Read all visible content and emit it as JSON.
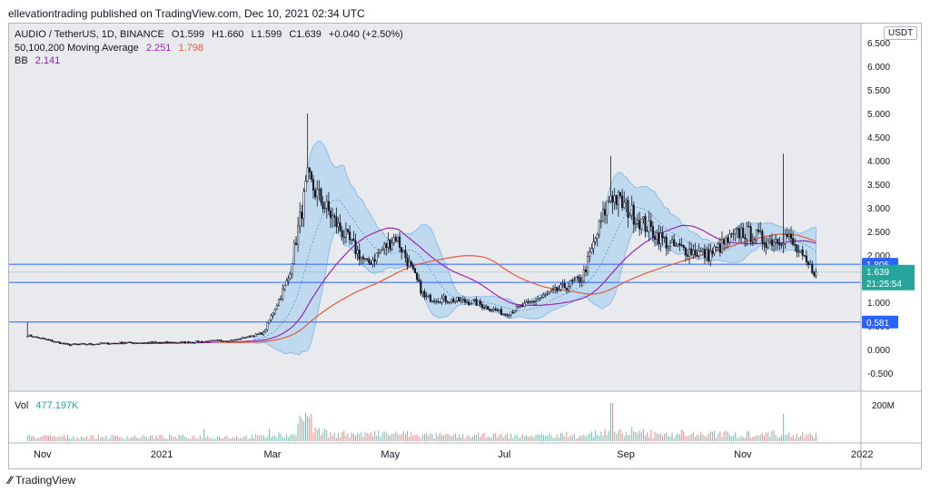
{
  "publisher": "ellevationtrading published on TradingView.com, Dec 10, 2021 02:34 UTC",
  "legend": {
    "symbol": "AUDIO / TetherUS, 1D, BINANCE",
    "open": "O1.599",
    "high": "H1.660",
    "low": "L1.599",
    "close": "C1.639",
    "change": "+0.040 (+2.50%)",
    "ma_label": "50,100,200 Moving Average",
    "ma_val1": "2.251",
    "ma_val2": "1.798",
    "bb_label": "BB",
    "bb_val": "2.141",
    "vol_label": "Vol",
    "vol_val": "477.197K"
  },
  "unit": "USDT",
  "footer": "TradingView",
  "colors": {
    "up": "#26a69a",
    "down": "#ef5350",
    "candle": "#131722",
    "ma50": "#9c27b0",
    "ma100": "#e05d3a",
    "bb_fill": "#9ccbf0",
    "hline": "#2962ff",
    "price_badge": "#26a69a"
  },
  "chart_data": {
    "type": "candlestick",
    "x_ticks": [
      "Nov",
      "2021",
      "Mar",
      "May",
      "Jul",
      "Sep",
      "Nov",
      "2022"
    ],
    "y_ticks": [
      "-0.500",
      "0.000",
      "0.500",
      "1.000",
      "1.500",
      "2.000",
      "2.500",
      "3.000",
      "3.500",
      "4.000",
      "4.500",
      "5.000",
      "5.500",
      "6.000",
      "6.500"
    ],
    "ylim": [
      -0.5,
      6.6
    ],
    "horizontal_levels": [
      {
        "label": "1.805",
        "value": 1.805
      },
      {
        "label": "1.420",
        "value": 1.42
      },
      {
        "label": "0.581",
        "value": 0.581
      }
    ],
    "last_price": {
      "label": "1.639",
      "value": 1.639,
      "countdown": "21:25:54"
    },
    "volume_axis_label": "200M",
    "close_series_approx": [
      {
        "date": "2020-10-25",
        "close": 0.3
      },
      {
        "date": "2020-11-15",
        "close": 0.1
      },
      {
        "date": "2020-12-15",
        "close": 0.14
      },
      {
        "date": "2021-01-15",
        "close": 0.15
      },
      {
        "date": "2021-02-10",
        "close": 0.2
      },
      {
        "date": "2021-02-25",
        "close": 0.35
      },
      {
        "date": "2021-03-10",
        "close": 1.5
      },
      {
        "date": "2021-03-20",
        "close": 3.6
      },
      {
        "date": "2021-04-05",
        "close": 2.6
      },
      {
        "date": "2021-04-20",
        "close": 1.8
      },
      {
        "date": "2021-05-05",
        "close": 2.4
      },
      {
        "date": "2021-05-20",
        "close": 1.1
      },
      {
        "date": "2021-06-15",
        "close": 1.0
      },
      {
        "date": "2021-07-01",
        "close": 0.75
      },
      {
        "date": "2021-07-20",
        "close": 1.1
      },
      {
        "date": "2021-08-10",
        "close": 1.5
      },
      {
        "date": "2021-08-25",
        "close": 3.3
      },
      {
        "date": "2021-09-10",
        "close": 2.7
      },
      {
        "date": "2021-09-25",
        "close": 2.2
      },
      {
        "date": "2021-10-15",
        "close": 2.0
      },
      {
        "date": "2021-11-01",
        "close": 2.5
      },
      {
        "date": "2021-11-15",
        "close": 2.3
      },
      {
        "date": "2021-11-25",
        "close": 2.4
      },
      {
        "date": "2021-12-05",
        "close": 1.8
      },
      {
        "date": "2021-12-10",
        "close": 1.639
      }
    ],
    "spike_highs": [
      {
        "date": "2020-10-25",
        "high": 0.58
      },
      {
        "date": "2021-03-20",
        "high": 5.0
      },
      {
        "date": "2021-08-25",
        "high": 4.1
      },
      {
        "date": "2021-11-23",
        "high": 4.15
      }
    ]
  }
}
